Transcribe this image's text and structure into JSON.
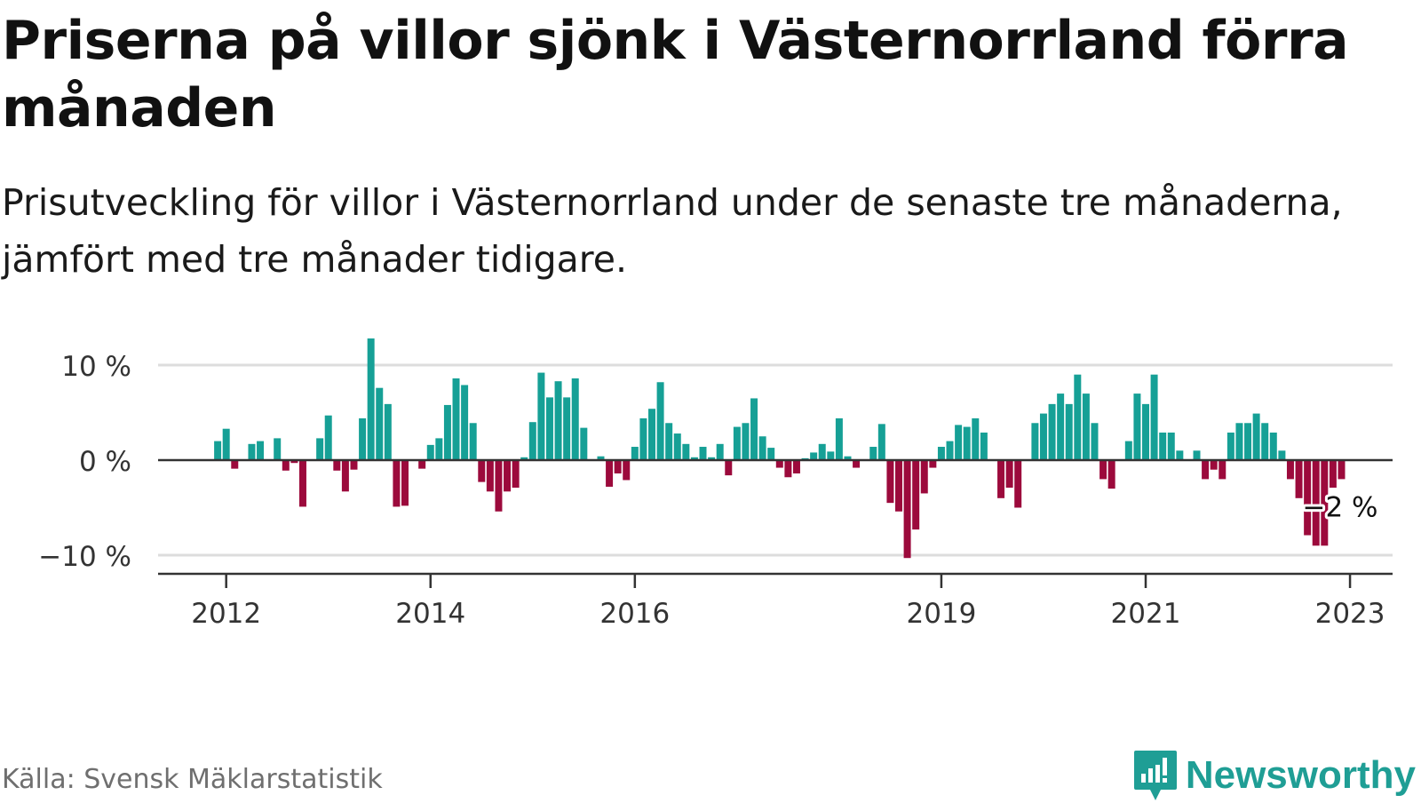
{
  "title": "Priserna på villor sjönk i Västernorrland förra månaden",
  "subtitle": "Prisutveckling för villor i Västernorrland under de senaste tre månaderna, jämfört med tre månader tidigare.",
  "source": "Källa: Svensk Mäklarstatistik",
  "brand": {
    "name": "Newsworthy",
    "color": "#1f9e95",
    "icon": "newsworthy-logo-icon"
  },
  "colors": {
    "positive": "#16a096",
    "negative": "#9c0a3c",
    "axis": "#333333",
    "grid": "#dddddd"
  },
  "chart_data": {
    "type": "bar",
    "title": "",
    "xlabel": "",
    "ylabel": "",
    "ylim": [
      -11.5,
      13
    ],
    "yticks": [
      10,
      0,
      -10
    ],
    "ytick_labels": [
      "10 %",
      "0 %",
      "−10 %"
    ],
    "grid": true,
    "legend": "none",
    "xticks": [
      {
        "label": "2012",
        "date": "2012-01"
      },
      {
        "label": "2014",
        "date": "2014-01"
      },
      {
        "label": "2016",
        "date": "2016-01"
      },
      {
        "label": "2019",
        "date": "2019-01"
      },
      {
        "label": "2021",
        "date": "2021-01"
      },
      {
        "label": "2023",
        "date": "2023-01"
      }
    ],
    "start": "2011-05",
    "end": "2023-06",
    "series": [
      {
        "points": [
          {
            "date": "2011-12",
            "value": 2.0
          },
          {
            "date": "2012-01",
            "value": 3.3
          },
          {
            "date": "2012-02",
            "value": -0.9
          },
          {
            "date": "2012-04",
            "value": 1.7
          },
          {
            "date": "2012-05",
            "value": 2.0
          },
          {
            "date": "2012-07",
            "value": 2.3
          },
          {
            "date": "2012-08",
            "value": -1.1
          },
          {
            "date": "2012-09",
            "value": -0.3
          },
          {
            "date": "2012-10",
            "value": -4.9
          },
          {
            "date": "2012-12",
            "value": 2.3
          },
          {
            "date": "2013-01",
            "value": 4.7
          },
          {
            "date": "2013-02",
            "value": -1.1
          },
          {
            "date": "2013-03",
            "value": -3.3
          },
          {
            "date": "2013-04",
            "value": -1.0
          },
          {
            "date": "2013-05",
            "value": 4.4
          },
          {
            "date": "2013-06",
            "value": 12.8
          },
          {
            "date": "2013-07",
            "value": 7.6
          },
          {
            "date": "2013-08",
            "value": 5.9
          },
          {
            "date": "2013-09",
            "value": -4.9
          },
          {
            "date": "2013-10",
            "value": -4.8
          },
          {
            "date": "2013-12",
            "value": -0.9
          },
          {
            "date": "2014-01",
            "value": 1.6
          },
          {
            "date": "2014-02",
            "value": 2.3
          },
          {
            "date": "2014-03",
            "value": 5.8
          },
          {
            "date": "2014-04",
            "value": 8.6
          },
          {
            "date": "2014-05",
            "value": 7.9
          },
          {
            "date": "2014-06",
            "value": 3.9
          },
          {
            "date": "2014-07",
            "value": -2.3
          },
          {
            "date": "2014-08",
            "value": -3.3
          },
          {
            "date": "2014-09",
            "value": -5.4
          },
          {
            "date": "2014-10",
            "value": -3.3
          },
          {
            "date": "2014-11",
            "value": -2.9
          },
          {
            "date": "2014-12",
            "value": 0.3
          },
          {
            "date": "2015-01",
            "value": 4.0
          },
          {
            "date": "2015-02",
            "value": 9.2
          },
          {
            "date": "2015-03",
            "value": 6.6
          },
          {
            "date": "2015-04",
            "value": 8.3
          },
          {
            "date": "2015-05",
            "value": 6.6
          },
          {
            "date": "2015-06",
            "value": 8.6
          },
          {
            "date": "2015-07",
            "value": 3.4
          },
          {
            "date": "2015-09",
            "value": 0.4
          },
          {
            "date": "2015-10",
            "value": -2.8
          },
          {
            "date": "2015-11",
            "value": -1.4
          },
          {
            "date": "2015-12",
            "value": -2.1
          },
          {
            "date": "2016-01",
            "value": 1.4
          },
          {
            "date": "2016-02",
            "value": 4.4
          },
          {
            "date": "2016-03",
            "value": 5.4
          },
          {
            "date": "2016-04",
            "value": 8.2
          },
          {
            "date": "2016-05",
            "value": 3.9
          },
          {
            "date": "2016-06",
            "value": 2.8
          },
          {
            "date": "2016-07",
            "value": 1.7
          },
          {
            "date": "2016-08",
            "value": 0.3
          },
          {
            "date": "2016-09",
            "value": 1.4
          },
          {
            "date": "2016-10",
            "value": 0.3
          },
          {
            "date": "2016-11",
            "value": 1.7
          },
          {
            "date": "2016-12",
            "value": -1.6
          },
          {
            "date": "2017-01",
            "value": 3.5
          },
          {
            "date": "2017-02",
            "value": 3.9
          },
          {
            "date": "2017-03",
            "value": 6.5
          },
          {
            "date": "2017-04",
            "value": 2.5
          },
          {
            "date": "2017-05",
            "value": 1.3
          },
          {
            "date": "2017-06",
            "value": -0.8
          },
          {
            "date": "2017-07",
            "value": -1.8
          },
          {
            "date": "2017-08",
            "value": -1.4
          },
          {
            "date": "2017-09",
            "value": 0.2
          },
          {
            "date": "2017-10",
            "value": 0.8
          },
          {
            "date": "2017-11",
            "value": 1.7
          },
          {
            "date": "2017-12",
            "value": 0.9
          },
          {
            "date": "2018-01",
            "value": 4.4
          },
          {
            "date": "2018-02",
            "value": 0.4
          },
          {
            "date": "2018-03",
            "value": -0.8
          },
          {
            "date": "2018-05",
            "value": 1.4
          },
          {
            "date": "2018-06",
            "value": 3.8
          },
          {
            "date": "2018-07",
            "value": -4.5
          },
          {
            "date": "2018-08",
            "value": -5.4
          },
          {
            "date": "2018-09",
            "value": -10.3
          },
          {
            "date": "2018-10",
            "value": -7.3
          },
          {
            "date": "2018-11",
            "value": -3.5
          },
          {
            "date": "2018-12",
            "value": -0.8
          },
          {
            "date": "2019-01",
            "value": 1.4
          },
          {
            "date": "2019-02",
            "value": 2.0
          },
          {
            "date": "2019-03",
            "value": 3.7
          },
          {
            "date": "2019-04",
            "value": 3.5
          },
          {
            "date": "2019-05",
            "value": 4.4
          },
          {
            "date": "2019-06",
            "value": 2.9
          },
          {
            "date": "2019-08",
            "value": -4.0
          },
          {
            "date": "2019-09",
            "value": -2.9
          },
          {
            "date": "2019-10",
            "value": -5.0
          },
          {
            "date": "2019-12",
            "value": 3.9
          },
          {
            "date": "2020-01",
            "value": 4.9
          },
          {
            "date": "2020-02",
            "value": 5.9
          },
          {
            "date": "2020-03",
            "value": 7.0
          },
          {
            "date": "2020-04",
            "value": 5.9
          },
          {
            "date": "2020-05",
            "value": 9.0
          },
          {
            "date": "2020-06",
            "value": 7.0
          },
          {
            "date": "2020-07",
            "value": 3.9
          },
          {
            "date": "2020-08",
            "value": -2.0
          },
          {
            "date": "2020-09",
            "value": -3.0
          },
          {
            "date": "2020-11",
            "value": 2.0
          },
          {
            "date": "2020-12",
            "value": 7.0
          },
          {
            "date": "2021-01",
            "value": 5.9
          },
          {
            "date": "2021-02",
            "value": 9.0
          },
          {
            "date": "2021-03",
            "value": 2.9
          },
          {
            "date": "2021-04",
            "value": 2.9
          },
          {
            "date": "2021-05",
            "value": 1.0
          },
          {
            "date": "2021-07",
            "value": 1.0
          },
          {
            "date": "2021-08",
            "value": -2.0
          },
          {
            "date": "2021-09",
            "value": -1.0
          },
          {
            "date": "2021-10",
            "value": -2.0
          },
          {
            "date": "2021-11",
            "value": 2.9
          },
          {
            "date": "2021-12",
            "value": 3.9
          },
          {
            "date": "2022-01",
            "value": 3.9
          },
          {
            "date": "2022-02",
            "value": 4.9
          },
          {
            "date": "2022-03",
            "value": 3.9
          },
          {
            "date": "2022-04",
            "value": 2.9
          },
          {
            "date": "2022-05",
            "value": 1.0
          },
          {
            "date": "2022-06",
            "value": -2.0
          },
          {
            "date": "2022-07",
            "value": -4.0
          },
          {
            "date": "2022-08",
            "value": -7.9
          },
          {
            "date": "2022-09",
            "value": -9.0
          },
          {
            "date": "2022-10",
            "value": -9.0
          },
          {
            "date": "2022-11",
            "value": -2.9
          },
          {
            "date": "2022-12",
            "value": -2.0
          }
        ]
      }
    ],
    "annotation": {
      "text": "−2 %",
      "date": "2022-12",
      "value": -2.0
    }
  }
}
